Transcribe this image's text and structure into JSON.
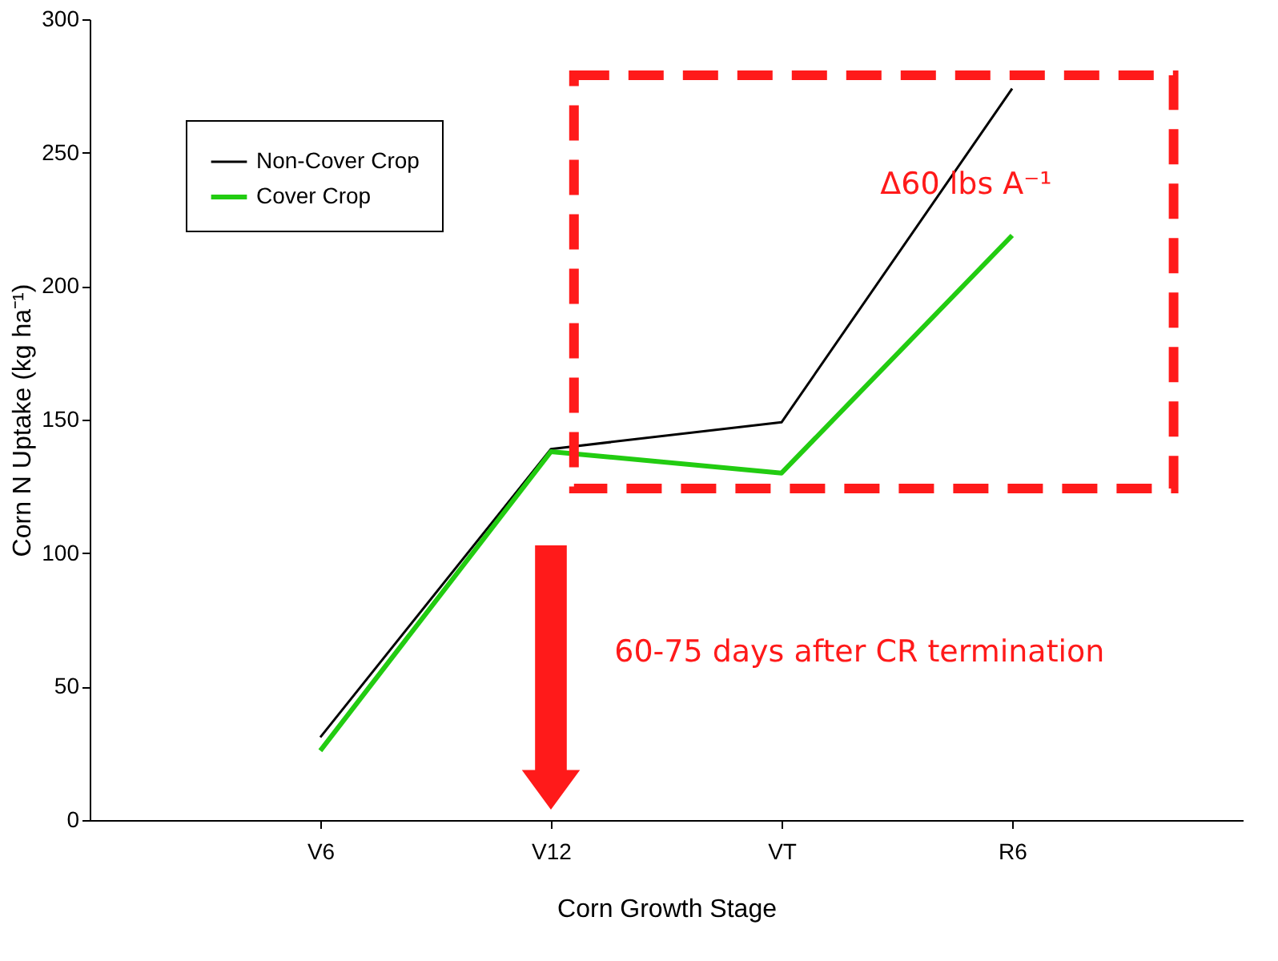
{
  "chart_data": {
    "type": "line",
    "xlabel": "Corn Growth Stage",
    "ylabel": "Corn N Uptake (kg ha⁻¹)",
    "categories": [
      "V6",
      "V12",
      "VT",
      "R6"
    ],
    "series": [
      {
        "name": "Non-Cover Crop",
        "color": "#000000",
        "values": [
          31,
          139,
          149,
          274
        ]
      },
      {
        "name": "Cover Crop",
        "color": "#22cc11",
        "values": [
          26,
          138,
          130,
          219
        ]
      }
    ],
    "ylim": [
      0,
      300
    ],
    "yticks": [
      0,
      50,
      100,
      150,
      200,
      250,
      300
    ],
    "grid": false,
    "legend": "top left",
    "marker": "none",
    "line_style": "solid",
    "annotations": [
      "Δ60 lbs A⁻¹",
      "60-75 days after CR termination"
    ]
  }
}
